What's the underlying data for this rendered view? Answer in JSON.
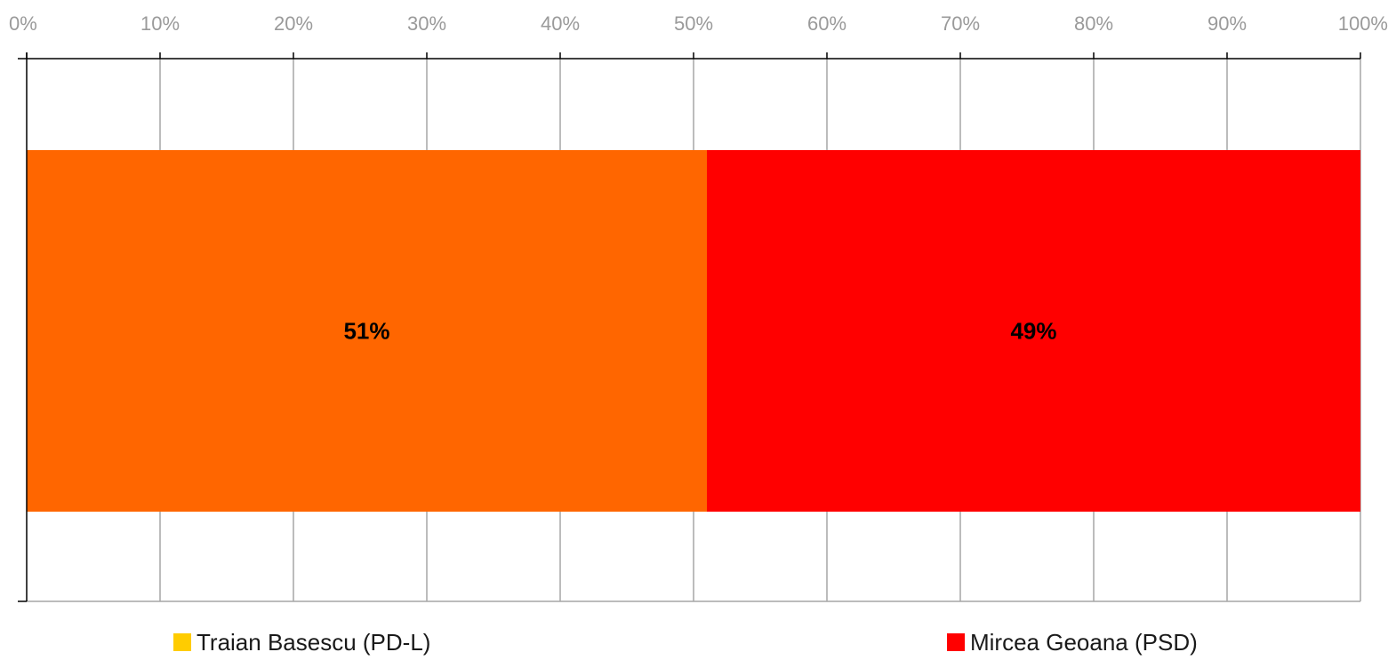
{
  "chart_data": {
    "type": "bar",
    "orientation": "horizontal",
    "stacked": "percent",
    "categories": [
      ""
    ],
    "series": [
      {
        "name": "Traian Basescu (PD-L)",
        "values": [
          51
        ],
        "label": "51%",
        "color": "#ff6600",
        "legend_color": "#ffcc00"
      },
      {
        "name": "Mircea Geoana (PSD)",
        "values": [
          49
        ],
        "label": "49%",
        "color": "#ff0000",
        "legend_color": "#ff0000"
      }
    ],
    "xlim": [
      0,
      100
    ],
    "xticks": [
      "0%",
      "10%",
      "20%",
      "30%",
      "40%",
      "50%",
      "60%",
      "70%",
      "80%",
      "90%",
      "100%"
    ],
    "xaxis_position": "top",
    "grid": true,
    "legend_position": "bottom",
    "title": "",
    "xlabel": "",
    "ylabel": ""
  }
}
